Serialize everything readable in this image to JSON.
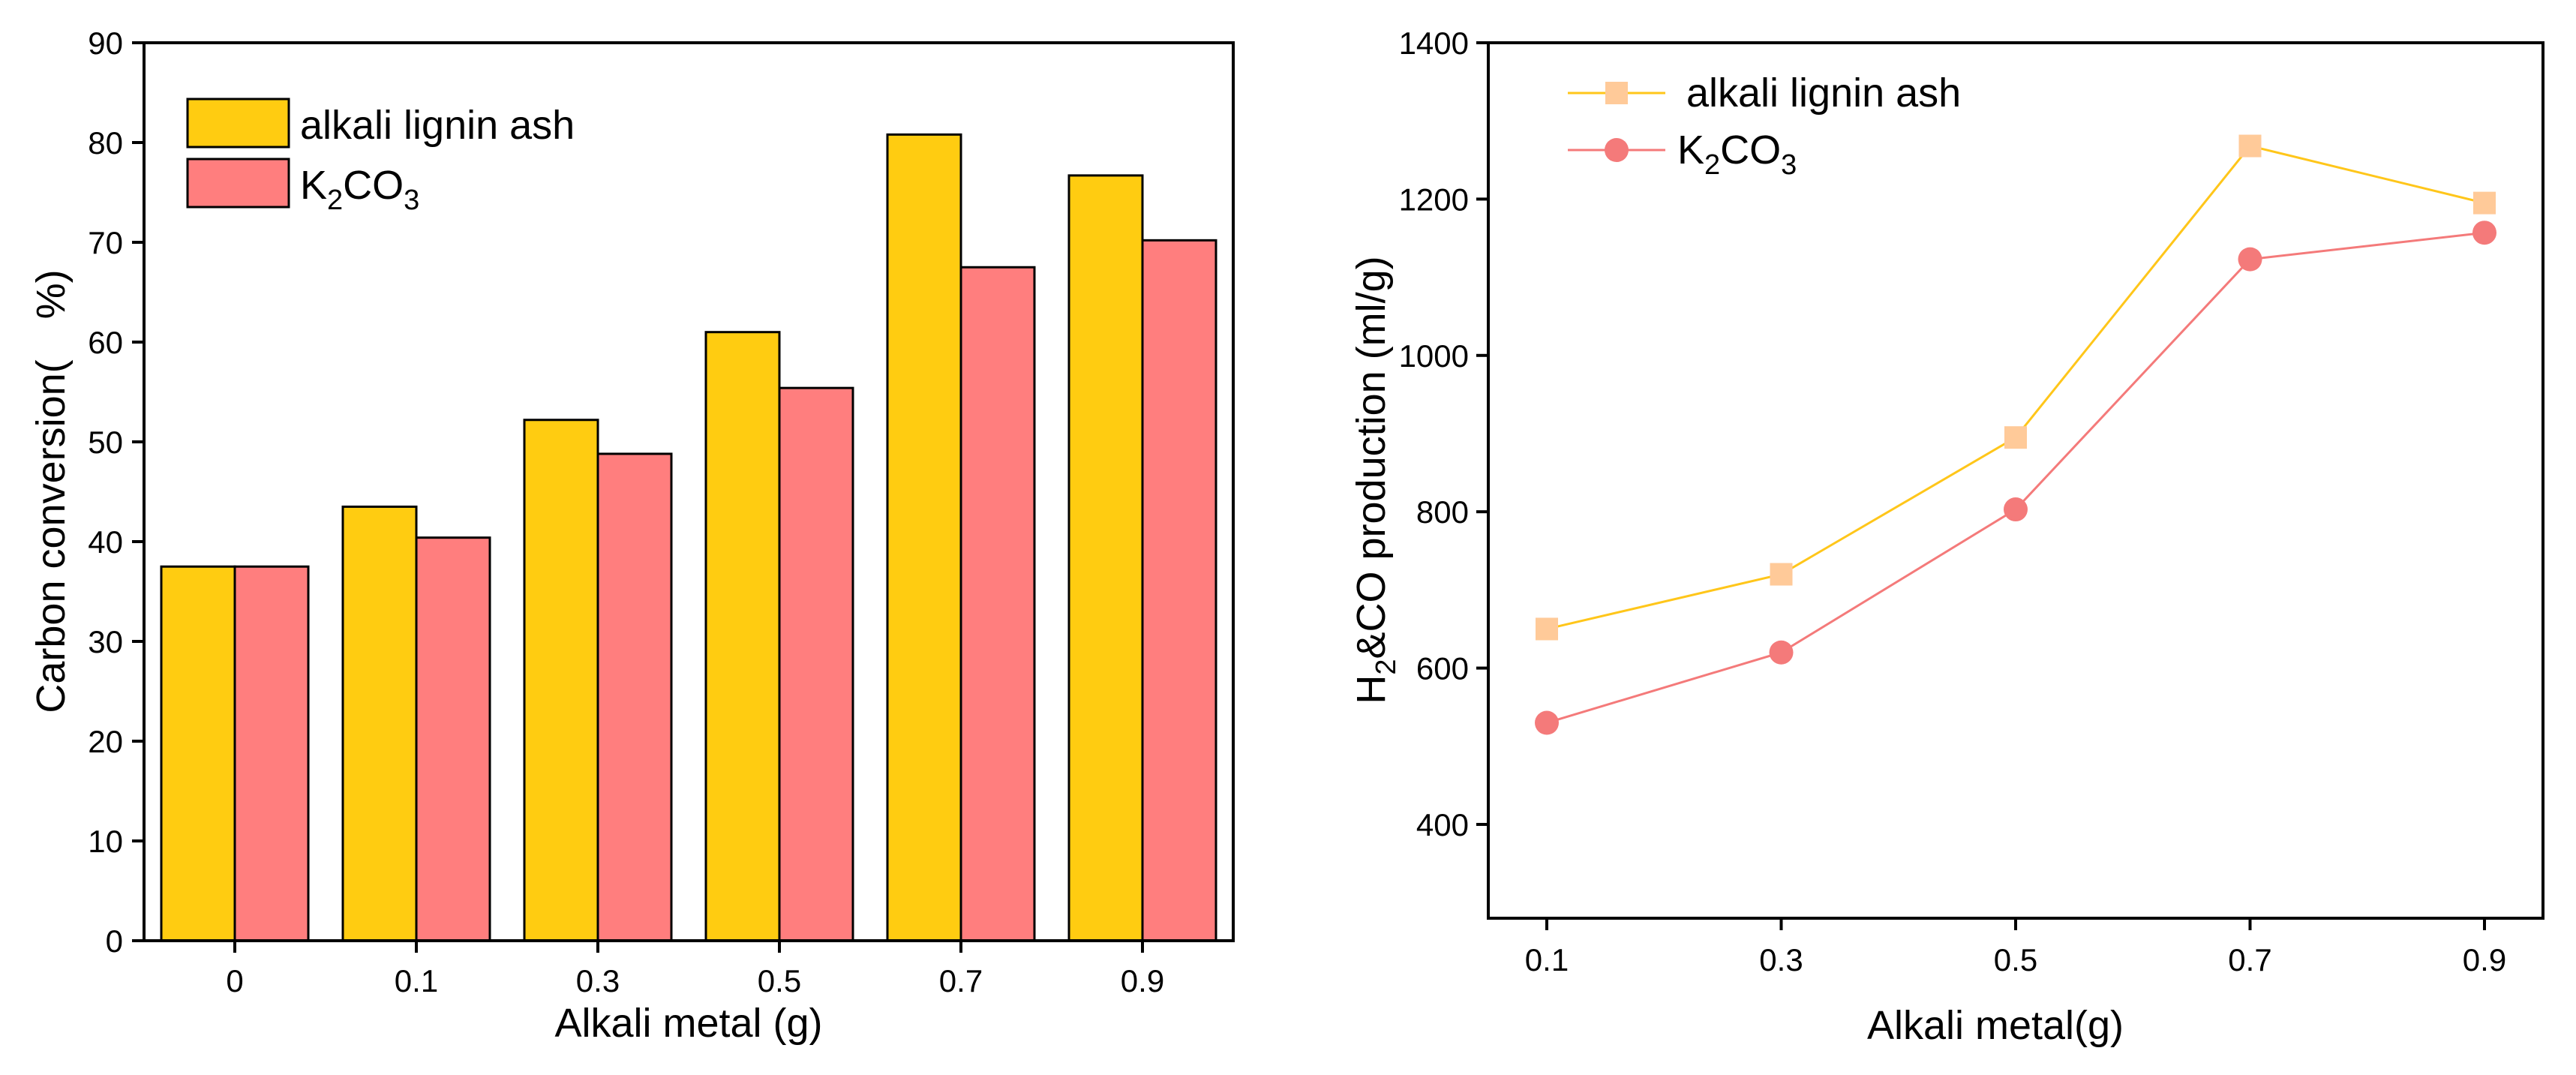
{
  "chart_data": [
    {
      "type": "bar",
      "categories": [
        "0",
        "0.1",
        "0.3",
        "0.5",
        "0.7",
        "0.9"
      ],
      "series": [
        {
          "name": "alkali lignin ash",
          "values": [
            37.5,
            43.5,
            52.2,
            61.0,
            80.8,
            76.7
          ],
          "color": "#FFCC11"
        },
        {
          "name": "K2CO3",
          "values": [
            37.5,
            40.4,
            48.8,
            55.4,
            67.5,
            70.2
          ],
          "color": "#FF7E7E"
        }
      ],
      "legend": {
        "alkali": "alkali lignin ash",
        "k_main": "K",
        "k_sub1": "2",
        "k_mid": "CO",
        "k_sub2": "3"
      },
      "xlabel": "Alkali metal (g)",
      "ylabel": "Carbon conversion(　%)",
      "ylim": [
        0,
        90
      ],
      "yticks": [
        "0",
        "10",
        "20",
        "30",
        "40",
        "50",
        "60",
        "70",
        "80",
        "90"
      ],
      "legend_position": "top-left",
      "grid": false
    },
    {
      "type": "line",
      "x": [
        "0.1",
        "0.3",
        "0.5",
        "0.7",
        "0.9"
      ],
      "series": [
        {
          "name": "alkali lignin ash",
          "marker": "square",
          "values": [
            650,
            720,
            895,
            1268,
            1195
          ],
          "line_color": "#FFC61A",
          "marker_color": "#FFCA99"
        },
        {
          "name": "K2CO3",
          "marker": "circle",
          "values": [
            530,
            620,
            803,
            1123,
            1157
          ],
          "line_color": "#F47A7A",
          "marker_color": "#F47A7A"
        }
      ],
      "legend": {
        "alkali": "alkali lignin ash",
        "k_main": "K",
        "k_sub1": "2",
        "k_mid": "CO",
        "k_sub2": "3"
      },
      "xlabel": "Alkali metal(g)",
      "ylabel": {
        "main": "H",
        "sub": "2",
        "rest": "&CO production (ml/g)"
      },
      "ylim": [
        280,
        1400
      ],
      "yticks": [
        "400",
        "600",
        "800",
        "1000",
        "1200",
        "1400"
      ],
      "legend_position": "top-left",
      "grid": false
    }
  ]
}
